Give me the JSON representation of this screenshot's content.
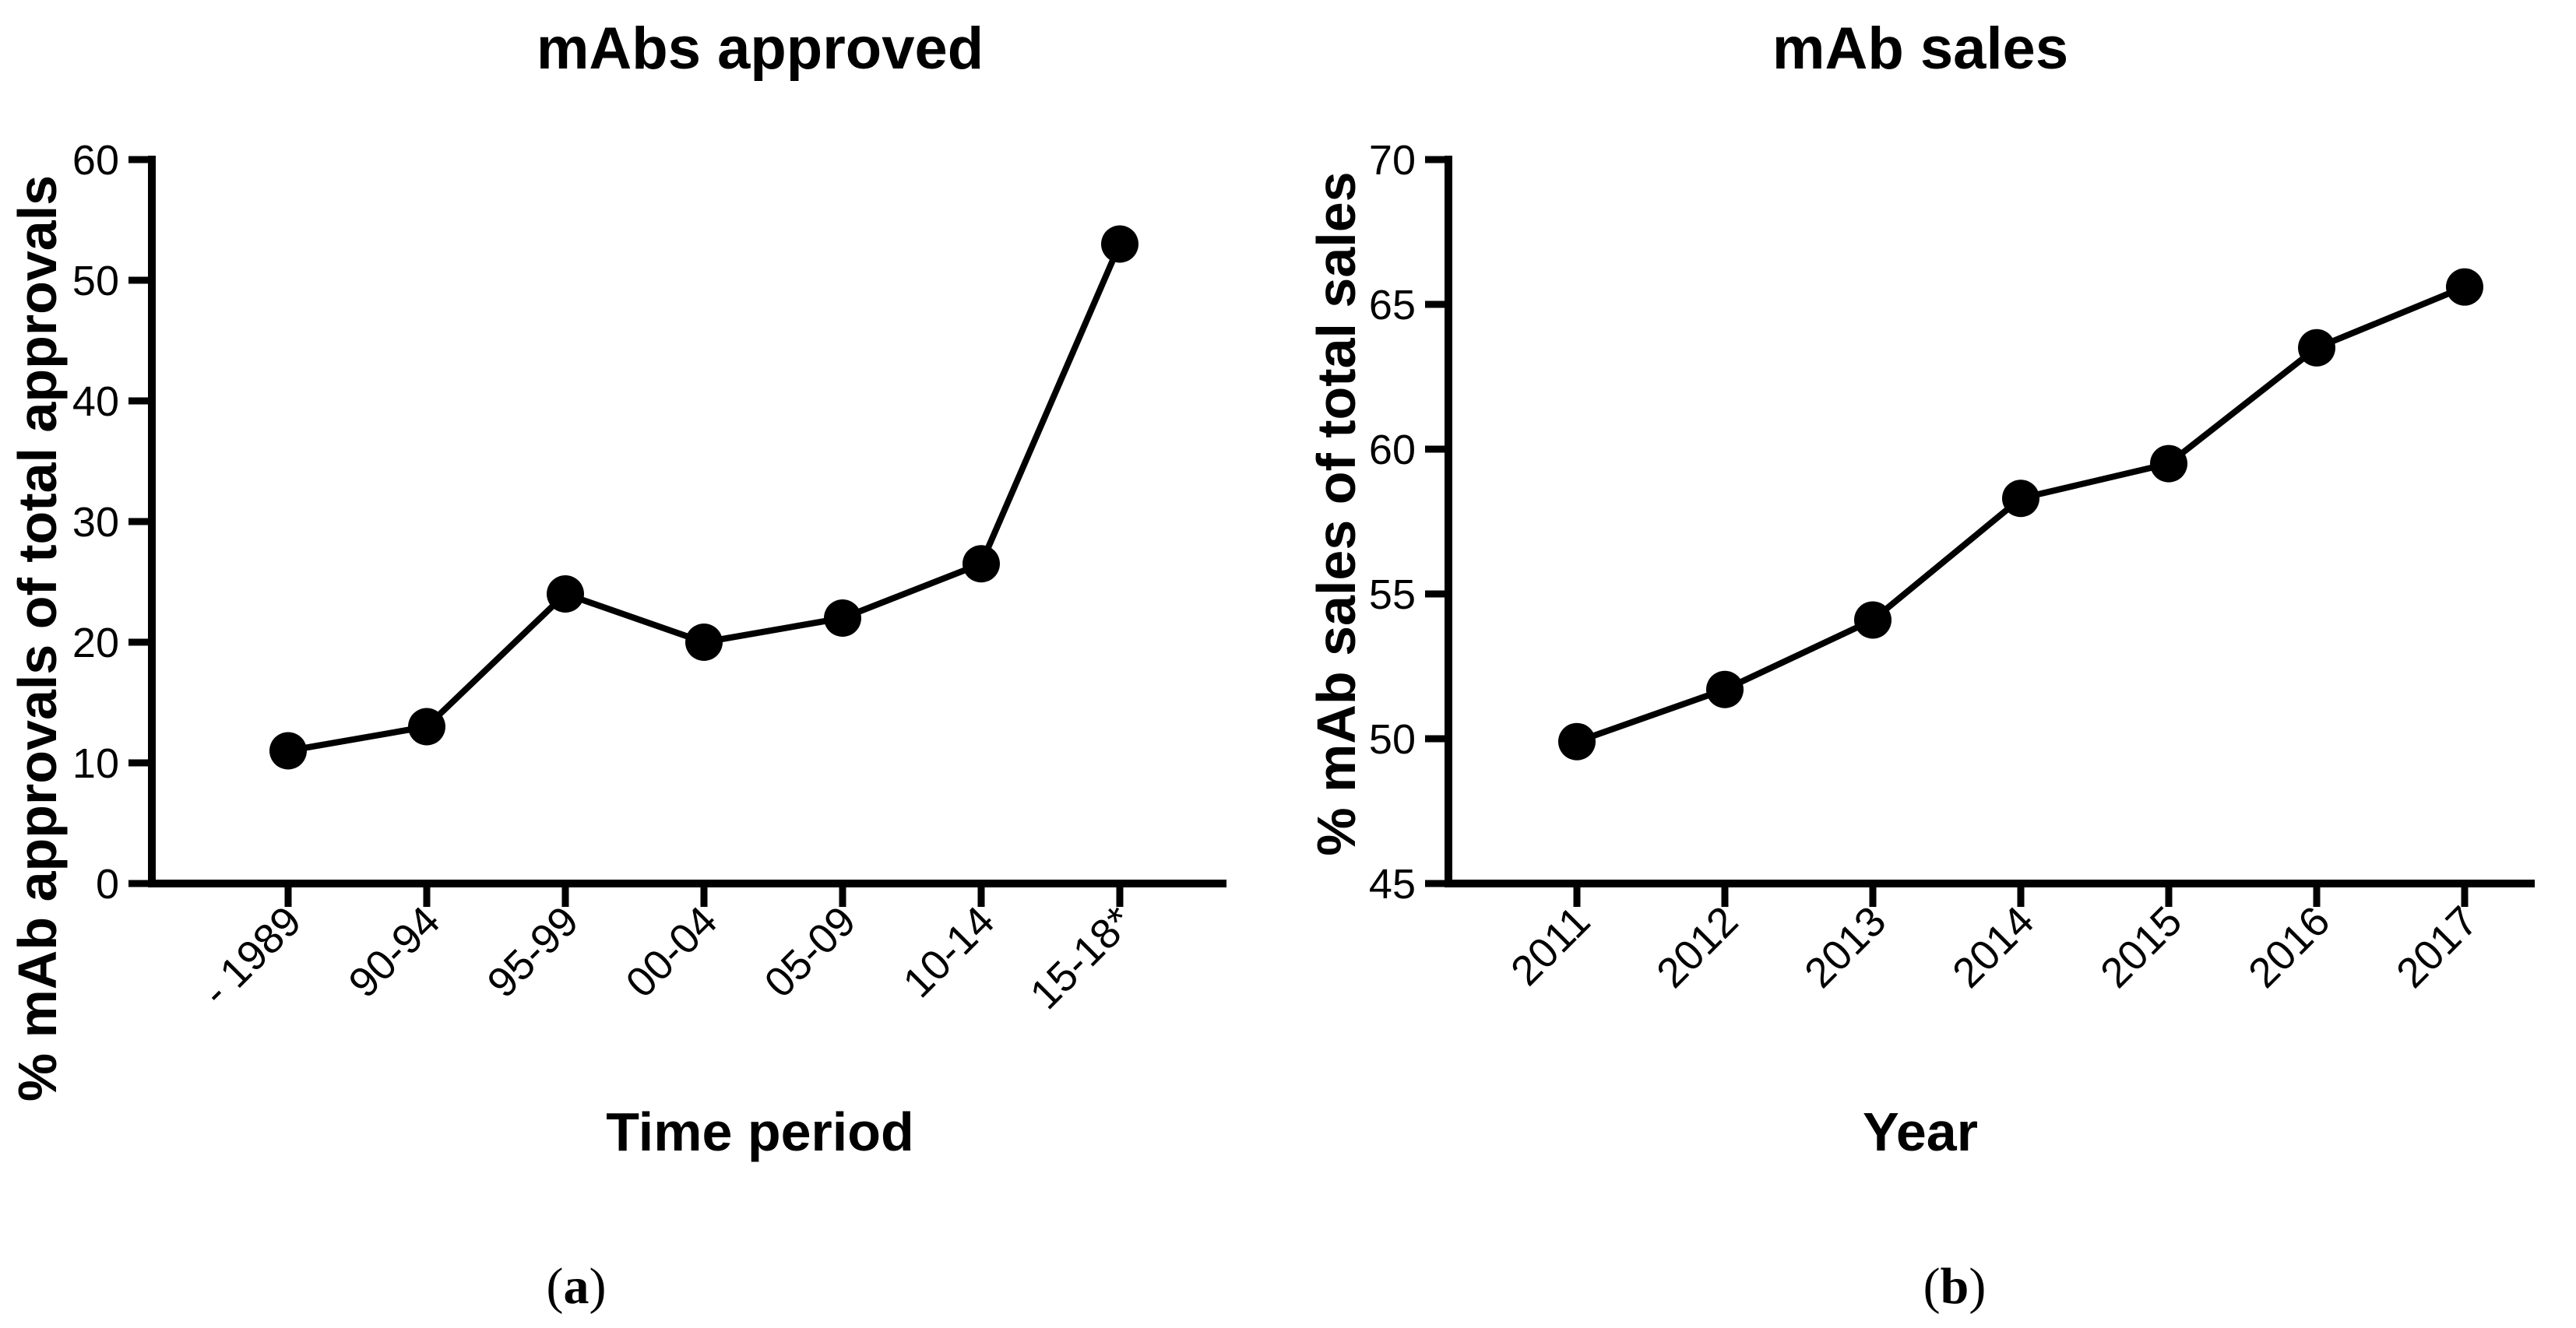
{
  "chart_data": [
    {
      "type": "line",
      "title": "mAbs approved",
      "xlabel": "Time period",
      "ylabel": "% mAb approvals of total approvals",
      "categories": [
        "- 1989",
        "90-94",
        "95-99",
        "00-04",
        "05-09",
        "10-14",
        "15-18*"
      ],
      "values": [
        11,
        13,
        24,
        20,
        22,
        26.5,
        53
      ],
      "ylim": [
        0,
        60
      ],
      "yticks": [
        0,
        10,
        20,
        30,
        40,
        50,
        60
      ],
      "ytick_labels": [
        "0",
        "10",
        "20",
        "30",
        "40",
        "50",
        "60"
      ],
      "panel_label": {
        "open": "(",
        "letter": "a",
        "close": ")"
      },
      "grid": false,
      "legend": "none"
    },
    {
      "type": "line",
      "title": "mAb sales",
      "xlabel": "Year",
      "ylabel": "% mAb sales of total sales",
      "categories": [
        "2011",
        "2012",
        "2013",
        "2014",
        "2015",
        "2016",
        "2017"
      ],
      "values": [
        49.9,
        51.7,
        54.1,
        58.3,
        59.5,
        63.5,
        65.6
      ],
      "ylim": [
        45,
        70
      ],
      "yticks": [
        45,
        50,
        55,
        60,
        65,
        70
      ],
      "ytick_labels": [
        "45",
        "50",
        "55",
        "60",
        "65",
        "70"
      ],
      "panel_label": {
        "open": "(",
        "letter": "b",
        "close": ")"
      },
      "grid": false,
      "legend": "none"
    }
  ]
}
